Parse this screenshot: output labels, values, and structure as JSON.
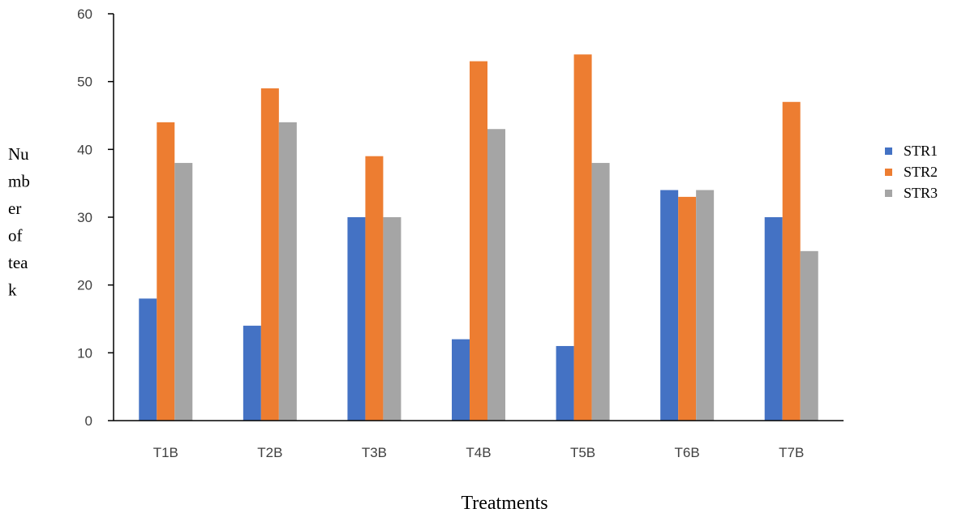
{
  "chart_data": {
    "type": "bar",
    "categories": [
      "T1B",
      "T2B",
      "T3B",
      "T4B",
      "T5B",
      "T6B",
      "T7B"
    ],
    "series": [
      {
        "name": "STR1",
        "color": "#4472C4",
        "values": [
          18,
          14,
          30,
          12,
          11,
          34,
          30
        ]
      },
      {
        "name": "STR2",
        "color": "#ED7D31",
        "values": [
          44,
          49,
          39,
          53,
          54,
          33,
          47
        ]
      },
      {
        "name": "STR3",
        "color": "#A5A5A5",
        "values": [
          38,
          44,
          30,
          43,
          38,
          34,
          25
        ]
      }
    ],
    "ylim": [
      0,
      60
    ],
    "yticks": [
      "0",
      "10",
      "20",
      "30",
      "40",
      "50",
      "60"
    ],
    "xlabel": "Treatments",
    "ylabel_lines": [
      "Nu",
      "mb",
      "er",
      "of",
      "tea",
      "k"
    ],
    "grid": false,
    "legend": "right"
  }
}
